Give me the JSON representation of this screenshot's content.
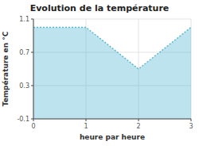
{
  "chart_data": {
    "type": "area",
    "title": "Evolution de la température",
    "xlabel": "heure par heure",
    "ylabel": "Température en °C",
    "x": [
      0,
      1,
      2,
      3
    ],
    "values": [
      1.0,
      1.0,
      0.5,
      1.0
    ],
    "color": "#5bb8d4",
    "line_style": "dotted",
    "xlim": [
      0,
      3
    ],
    "ylim": [
      -0.1,
      1.1
    ],
    "xticks": [
      0,
      1,
      2,
      3
    ],
    "yticks": [
      -0.1,
      0.3,
      0.7,
      1.1
    ],
    "grid": true
  }
}
